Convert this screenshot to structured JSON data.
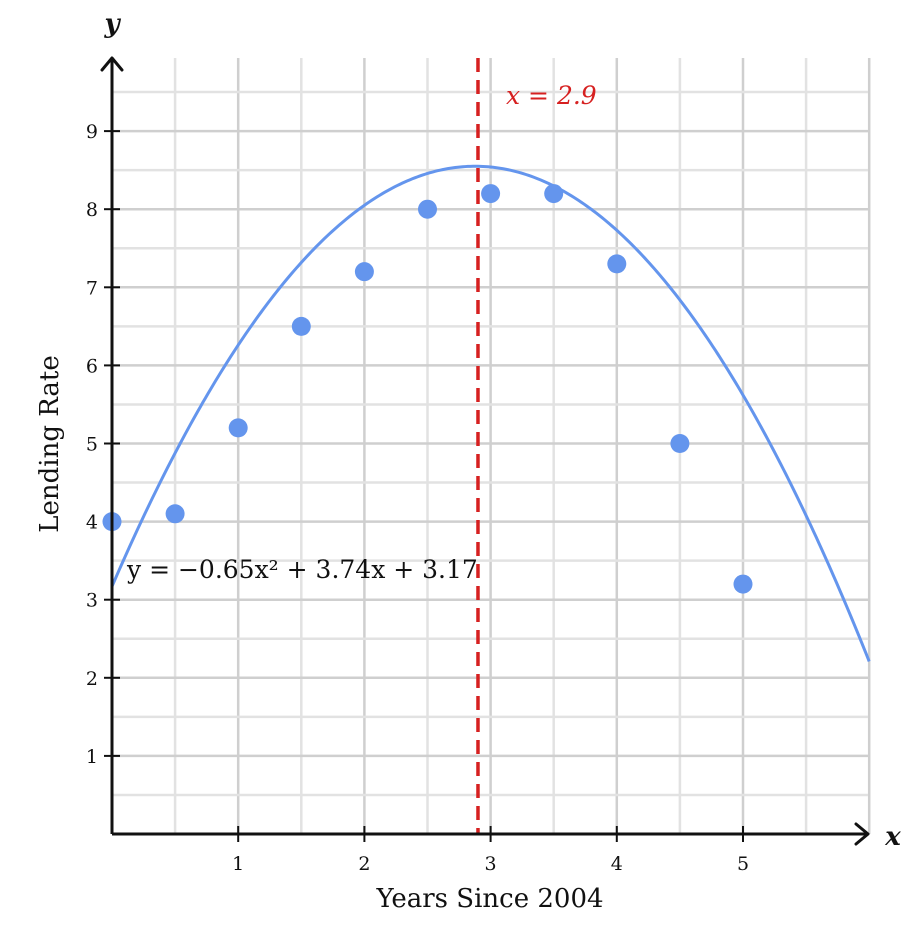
{
  "chart_data": {
    "type": "scatter",
    "title": "",
    "xlabel": "Years Since 2004",
    "ylabel": "Lending Rate",
    "x_axis_var": "x",
    "y_axis_var": "y",
    "xlim": [
      0,
      6
    ],
    "ylim": [
      0,
      10
    ],
    "x_ticks": [
      1,
      2,
      3,
      4,
      5
    ],
    "y_ticks": [
      1,
      2,
      3,
      4,
      5,
      6,
      7,
      8,
      9
    ],
    "grid": true,
    "series": [
      {
        "name": "data",
        "type": "scatter",
        "color": "#6495ed",
        "x": [
          0,
          0.5,
          1,
          1.5,
          2,
          2.5,
          3,
          3.5,
          4,
          4.5,
          5
        ],
        "y": [
          4.0,
          4.1,
          5.2,
          6.5,
          7.2,
          8.0,
          8.2,
          8.2,
          7.3,
          5.0,
          3.2
        ]
      },
      {
        "name": "fit",
        "type": "line",
        "color": "#6495ed",
        "coefficients": {
          "a": -0.65,
          "b": 3.74,
          "c": 3.17
        },
        "equation_label": "y = −0.65x² + 3.74x + 3.17"
      }
    ],
    "annotations": [
      {
        "type": "vertical_line",
        "x": 2.9,
        "color": "#d62020",
        "style": "dashed",
        "label": "x = 2.9"
      }
    ]
  }
}
